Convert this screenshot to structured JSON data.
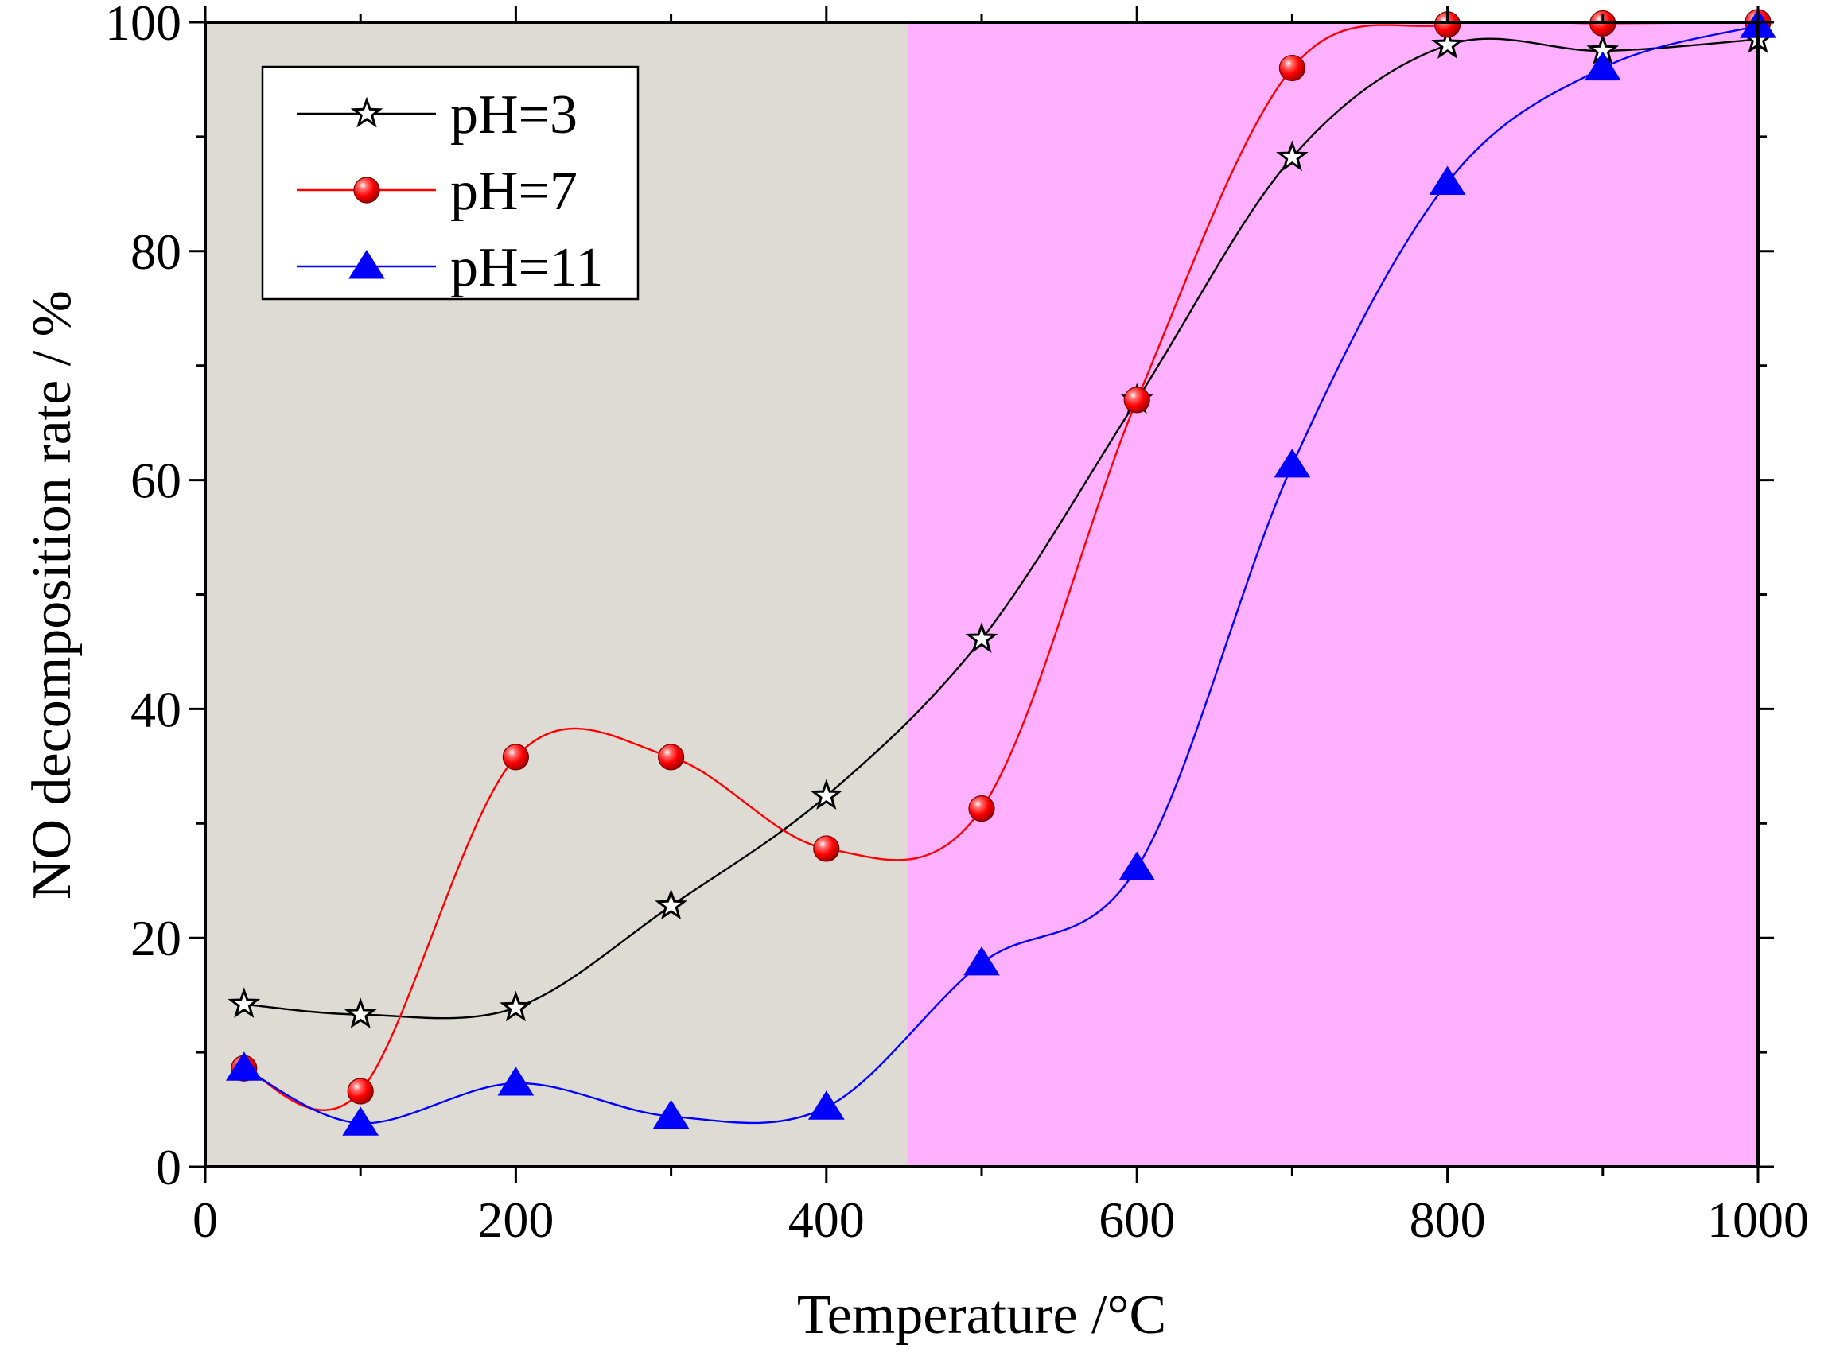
{
  "chart_data": {
    "type": "line",
    "title": "",
    "xlabel": "Temperature /°C",
    "ylabel": "NO decomposition rate / %",
    "xlim": [
      0,
      1000
    ],
    "ylim": [
      0,
      100
    ],
    "xticks": [
      0,
      200,
      400,
      600,
      800,
      1000
    ],
    "yticks": [
      0,
      20,
      40,
      60,
      80,
      100
    ],
    "x_minor_step": 100,
    "y_minor_step": 10,
    "grid": false,
    "legend_position": "top-left",
    "background_regions": [
      {
        "x_start": 0,
        "x_end": 452,
        "color": "#dedbd4"
      },
      {
        "x_start": 452,
        "x_end": 1000,
        "color": "#ffb0ff"
      }
    ],
    "x": [
      25,
      100,
      200,
      300,
      400,
      500,
      600,
      700,
      800,
      900,
      1000
    ],
    "series": [
      {
        "name": "pH=3",
        "marker": "star",
        "color": "#000000",
        "values": [
          14.2,
          13.3,
          13.9,
          22.8,
          32.4,
          46.1,
          67.0,
          88.2,
          98.0,
          97.5,
          98.5
        ]
      },
      {
        "name": "pH=7",
        "marker": "sphere",
        "color": "#ff0000",
        "values": [
          8.6,
          6.6,
          35.8,
          35.8,
          27.8,
          31.3,
          67.0,
          96.0,
          99.8,
          99.9,
          100.0
        ]
      },
      {
        "name": "pH=11",
        "marker": "triangle",
        "color": "#0000ff",
        "values": [
          8.6,
          3.8,
          7.3,
          4.4,
          5.2,
          17.8,
          26.1,
          61.3,
          86.0,
          96.0,
          99.7
        ]
      }
    ]
  }
}
